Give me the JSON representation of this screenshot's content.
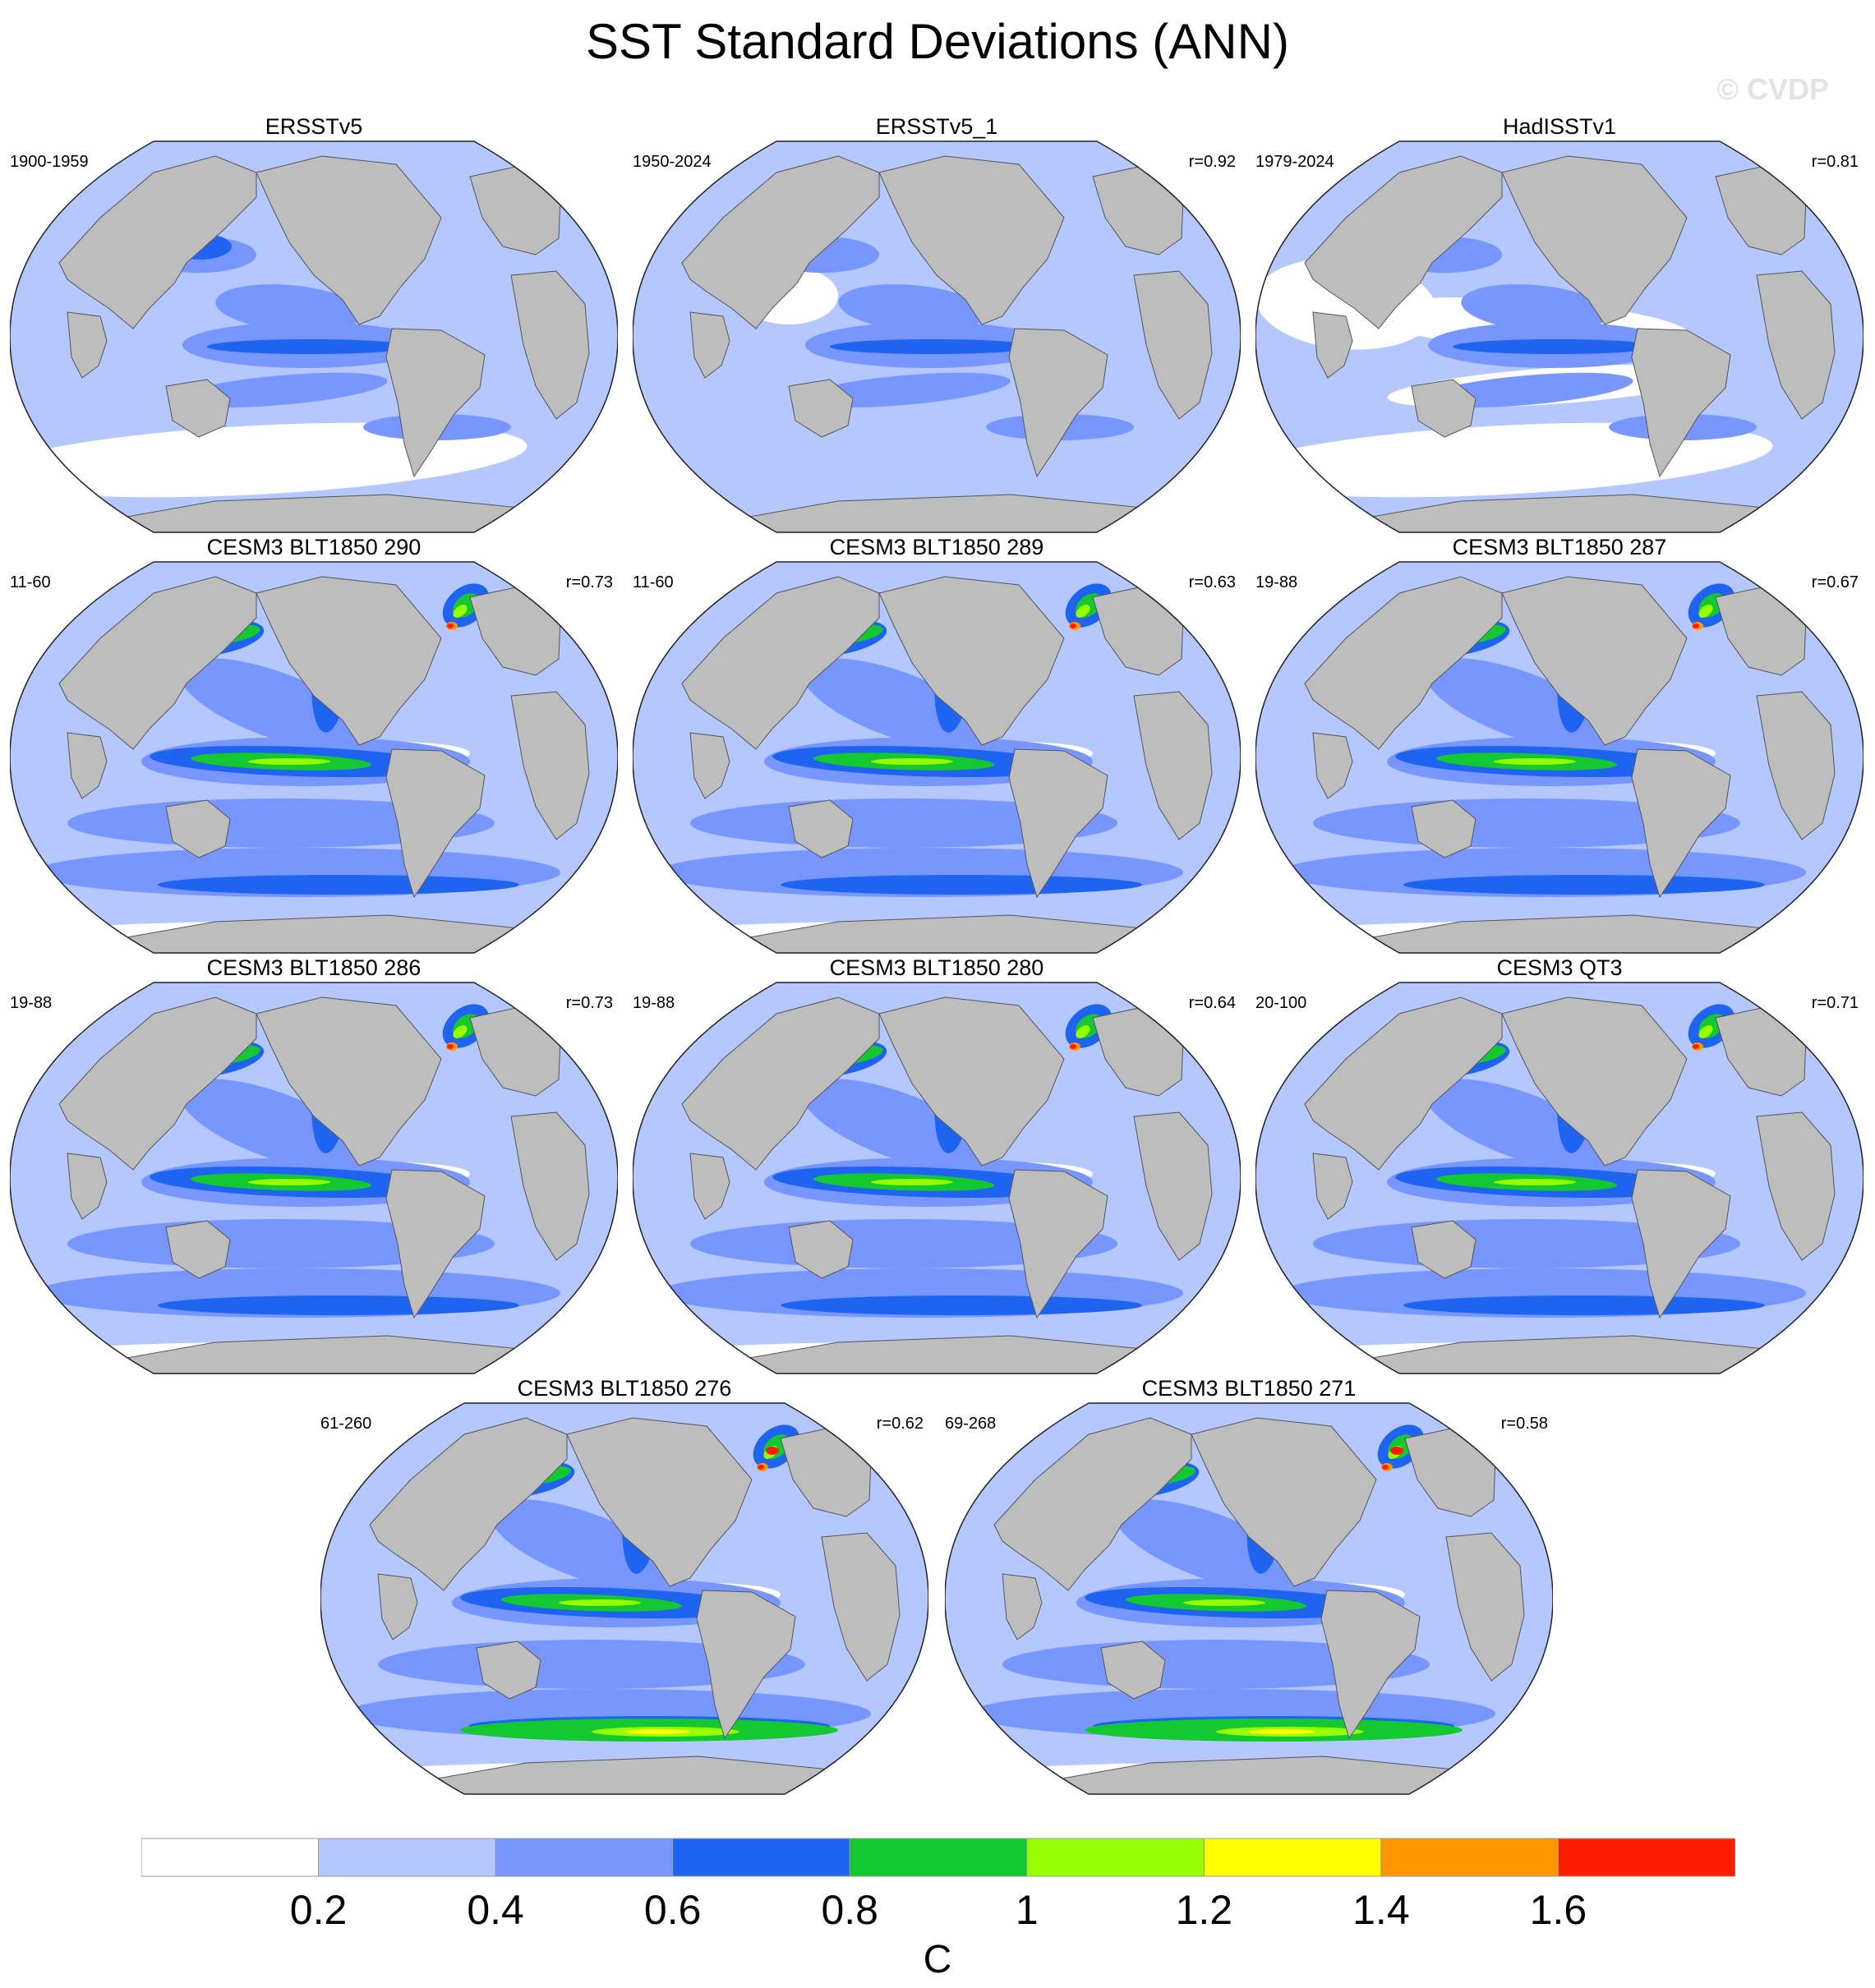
{
  "title": "SST Standard Deviations (ANN)",
  "credit": "© CVDP",
  "colors": {
    "land": "#bdbdbd",
    "bins": [
      "#ffffff",
      "#b4c8ff",
      "#7896ff",
      "#1e64f0",
      "#14c832",
      "#96ff00",
      "#ffff00",
      "#ff9600",
      "#ff1e00"
    ]
  },
  "panels": [
    {
      "title": "ERSSTv5",
      "years": "1900-1959",
      "r": "",
      "variant": "obs1"
    },
    {
      "title": "ERSSTv5_1",
      "years": "1950-2024",
      "r": "r=0.92",
      "variant": "obs2"
    },
    {
      "title": "HadISSTv1",
      "years": "1979-2024",
      "r": "r=0.81",
      "variant": "obs3"
    },
    {
      "title": "CESM3 BLT1850 290",
      "years": "11-60",
      "r": "r=0.73",
      "variant": "model"
    },
    {
      "title": "CESM3 BLT1850 289",
      "years": "11-60",
      "r": "r=0.63",
      "variant": "model"
    },
    {
      "title": "CESM3 BLT1850 287",
      "years": "19-88",
      "r": "r=0.67",
      "variant": "model"
    },
    {
      "title": "CESM3 BLT1850 286",
      "years": "19-88",
      "r": "r=0.73",
      "variant": "model"
    },
    {
      "title": "CESM3 BLT1850 280",
      "years": "19-88",
      "r": "r=0.64",
      "variant": "model"
    },
    {
      "title": "CESM3 QT3",
      "years": "20-100",
      "r": "r=0.71",
      "variant": "model"
    },
    {
      "title": "CESM3 BLT1850 276",
      "years": "61-260",
      "r": "r=0.62",
      "variant": "strong"
    },
    {
      "title": "CESM3 BLT1850 271",
      "years": "69-268",
      "r": "r=0.58",
      "variant": "strong"
    }
  ],
  "colorbar": {
    "labels": [
      "0.2",
      "0.4",
      "0.6",
      "0.8",
      "1",
      "1.2",
      "1.4",
      "1.6"
    ],
    "unit": "C"
  }
}
